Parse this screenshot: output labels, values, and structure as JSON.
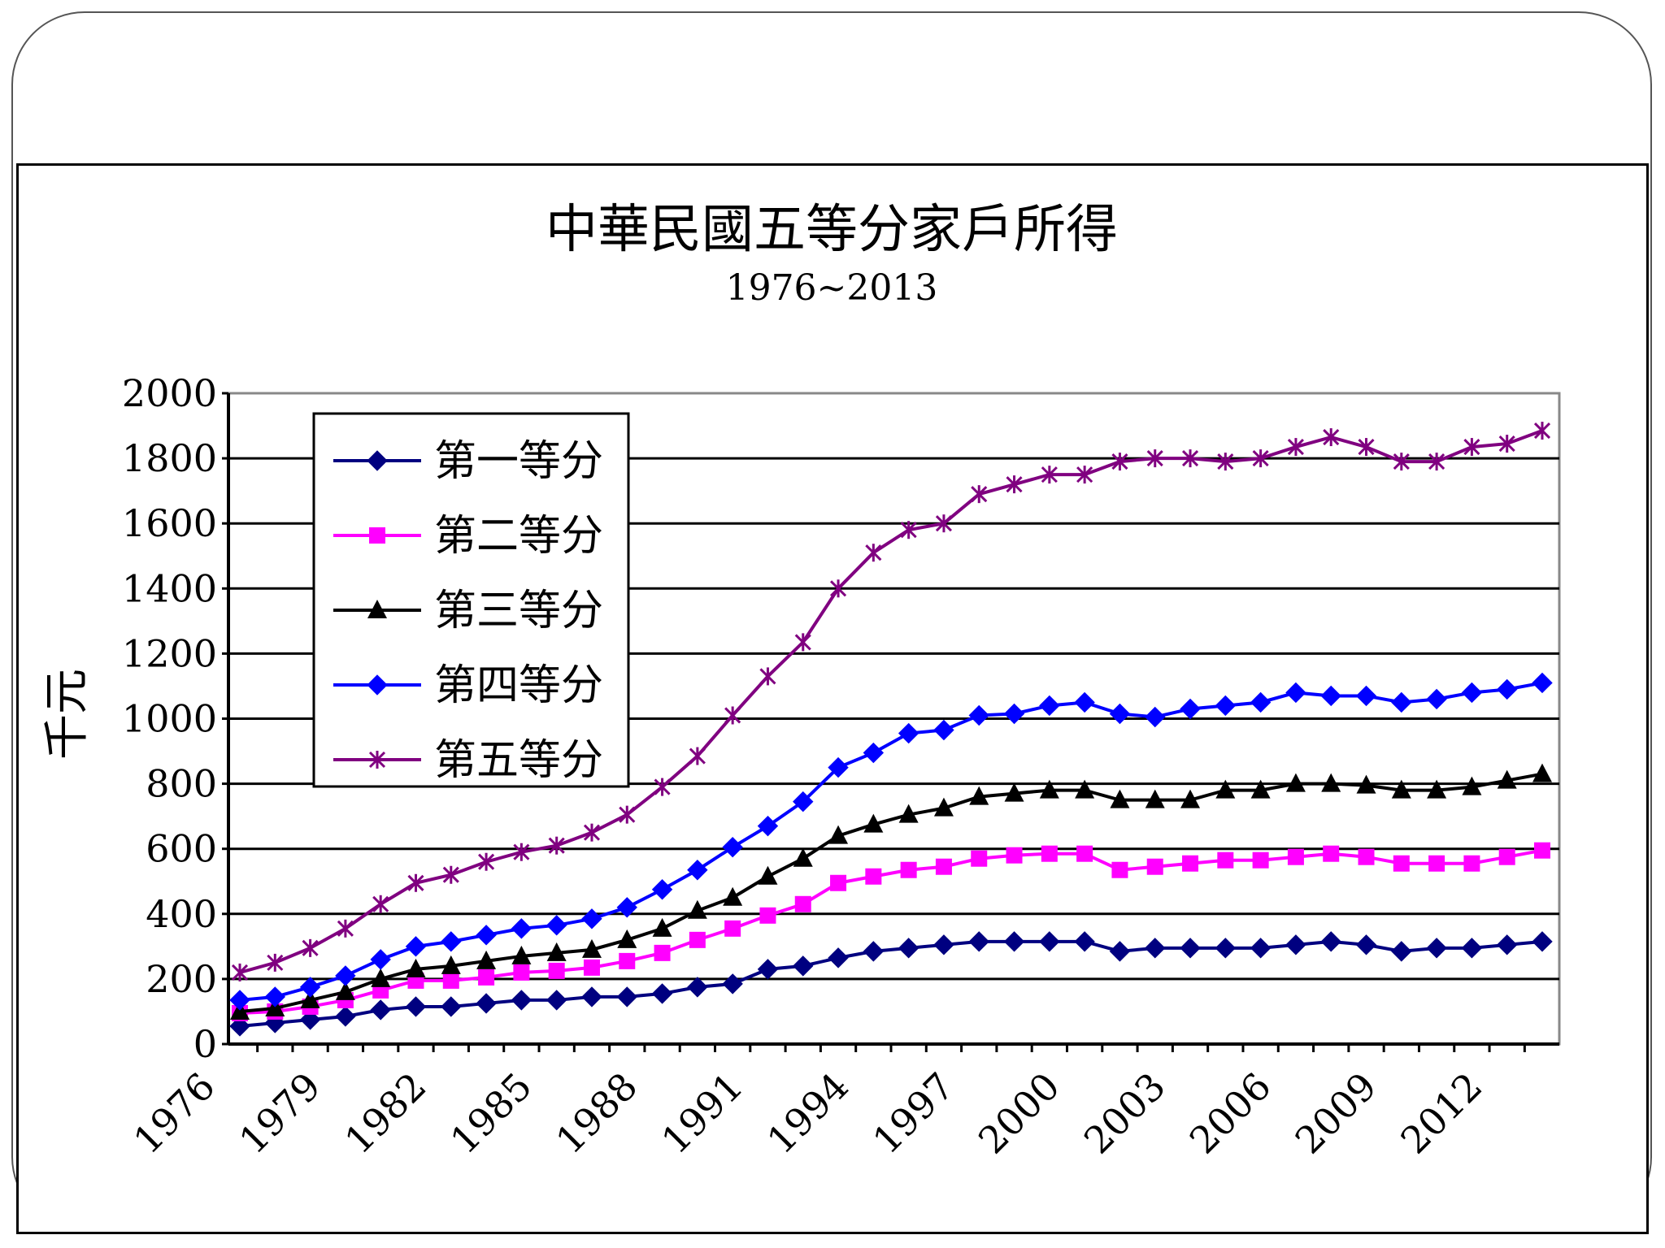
{
  "chart_data": {
    "type": "line",
    "title": "中華民國五等分家戶所得",
    "subtitle": "1976~2013",
    "ylabel": "千元",
    "xlabel": "",
    "ylim": [
      0,
      2000
    ],
    "yticks": [
      0,
      200,
      400,
      600,
      800,
      1000,
      1200,
      1400,
      1600,
      1800,
      2000
    ],
    "x": [
      1976,
      1977,
      1978,
      1979,
      1980,
      1981,
      1982,
      1983,
      1984,
      1985,
      1986,
      1987,
      1988,
      1989,
      1990,
      1991,
      1992,
      1993,
      1994,
      1995,
      1996,
      1997,
      1998,
      1999,
      2000,
      2001,
      2002,
      2003,
      2004,
      2005,
      2006,
      2007,
      2008,
      2009,
      2010,
      2011,
      2012,
      2013
    ],
    "xticks": [
      "1976",
      "1979",
      "1982",
      "1985",
      "1988",
      "1991",
      "1994",
      "1997",
      "2000",
      "2003",
      "2006",
      "2009",
      "2012"
    ],
    "grid": true,
    "legend_position": "top-left",
    "series": [
      {
        "name": "第一等分",
        "color": "#000080",
        "marker": "diamond",
        "values": [
          55,
          65,
          75,
          85,
          105,
          115,
          115,
          125,
          135,
          135,
          145,
          145,
          155,
          175,
          185,
          230,
          240,
          265,
          285,
          295,
          305,
          315,
          315,
          315,
          315,
          285,
          295,
          295,
          295,
          295,
          305,
          315,
          305,
          285,
          295,
          295,
          305,
          315
        ]
      },
      {
        "name": "第二等分",
        "color": "#ff00ff",
        "marker": "square",
        "values": [
          95,
          100,
          115,
          135,
          165,
          195,
          195,
          205,
          220,
          225,
          235,
          255,
          280,
          320,
          355,
          395,
          430,
          495,
          515,
          535,
          545,
          570,
          580,
          585,
          585,
          535,
          545,
          555,
          565,
          565,
          575,
          585,
          575,
          555,
          555,
          555,
          575,
          595
        ]
      },
      {
        "name": "第三等分",
        "color": "#000000",
        "marker": "triangle",
        "values": [
          100,
          110,
          135,
          160,
          200,
          230,
          240,
          255,
          270,
          280,
          290,
          320,
          355,
          410,
          450,
          515,
          570,
          640,
          675,
          705,
          725,
          760,
          770,
          780,
          780,
          750,
          750,
          750,
          780,
          780,
          800,
          800,
          795,
          780,
          780,
          790,
          810,
          830
        ]
      },
      {
        "name": "第四等分",
        "color": "#0000ff",
        "marker": "diamond",
        "values": [
          135,
          145,
          175,
          210,
          260,
          300,
          315,
          335,
          355,
          365,
          385,
          420,
          475,
          535,
          605,
          670,
          745,
          850,
          895,
          955,
          965,
          1010,
          1015,
          1040,
          1050,
          1015,
          1005,
          1030,
          1040,
          1050,
          1080,
          1070,
          1070,
          1050,
          1060,
          1080,
          1090,
          1110
        ]
      },
      {
        "name": "第五等分",
        "color": "#800080",
        "marker": "asterisk",
        "values": [
          220,
          250,
          295,
          355,
          430,
          495,
          520,
          560,
          590,
          610,
          650,
          705,
          790,
          885,
          1010,
          1130,
          1235,
          1400,
          1510,
          1580,
          1600,
          1690,
          1720,
          1750,
          1750,
          1790,
          1800,
          1800,
          1790,
          1800,
          1835,
          1865,
          1835,
          1790,
          1790,
          1835,
          1845,
          1885
        ]
      }
    ]
  }
}
